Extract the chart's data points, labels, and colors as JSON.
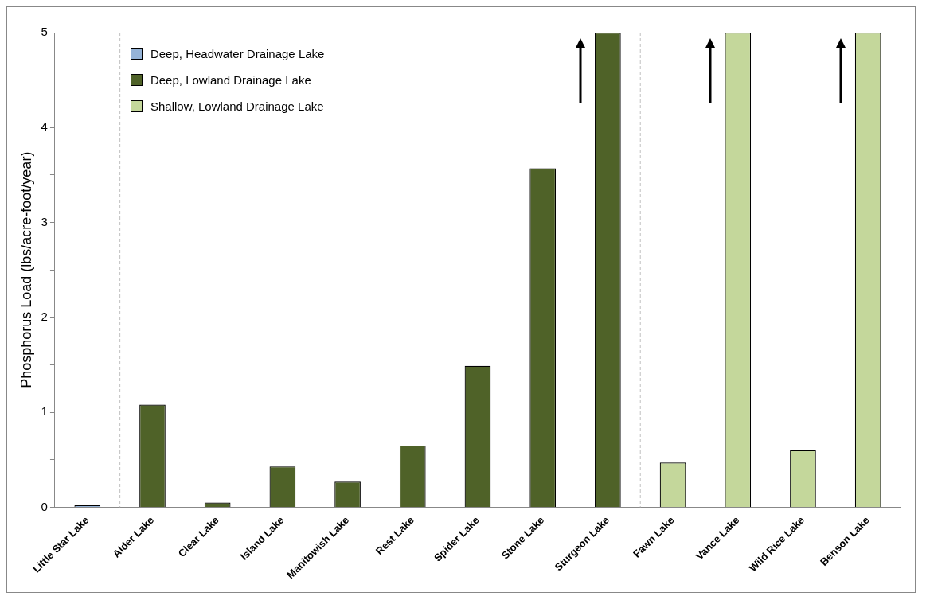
{
  "chart_data": {
    "type": "bar",
    "ylabel": "Phosphorus Load (lbs/acre-foot/year)",
    "categories": [
      "Little Star Lake",
      "Alder Lake",
      "Clear Lake",
      "Island Lake",
      "Manitowish Lake",
      "Rest Lake",
      "Spider Lake",
      "Stone Lake",
      "Sturgeon Lake",
      "Fawn Lake",
      "Vance Lake",
      "Wild Rice Lake",
      "Benson Lake"
    ],
    "series": [
      {
        "name": "Deep, Headwater Drainage Lake",
        "color": "#95b3d7",
        "values": [
          0.02,
          null,
          null,
          null,
          null,
          null,
          null,
          null,
          null,
          null,
          null,
          null,
          null
        ]
      },
      {
        "name": "Deep, Lowland Drainage Lake",
        "color": "#4f6228",
        "values": [
          null,
          1.08,
          0.05,
          0.43,
          0.27,
          0.65,
          1.49,
          3.57,
          5,
          null,
          null,
          null,
          null
        ]
      },
      {
        "name": "Shallow, Lowland Drainage Lake",
        "color": "#c4d79b",
        "values": [
          null,
          null,
          null,
          null,
          null,
          null,
          null,
          null,
          null,
          0.47,
          5,
          0.6,
          5
        ]
      }
    ],
    "ylim": [
      0,
      5
    ],
    "yticks": [
      0,
      {
        "value": 0.5,
        "label": null
      },
      1,
      {
        "value": 1.5,
        "label": null
      },
      2,
      {
        "value": 2.5,
        "label": null
      },
      3,
      {
        "value": 3.5,
        "label": null
      },
      4,
      {
        "value": 4.5,
        "label": null
      },
      5
    ],
    "grid": false,
    "legend": "top left"
  }
}
